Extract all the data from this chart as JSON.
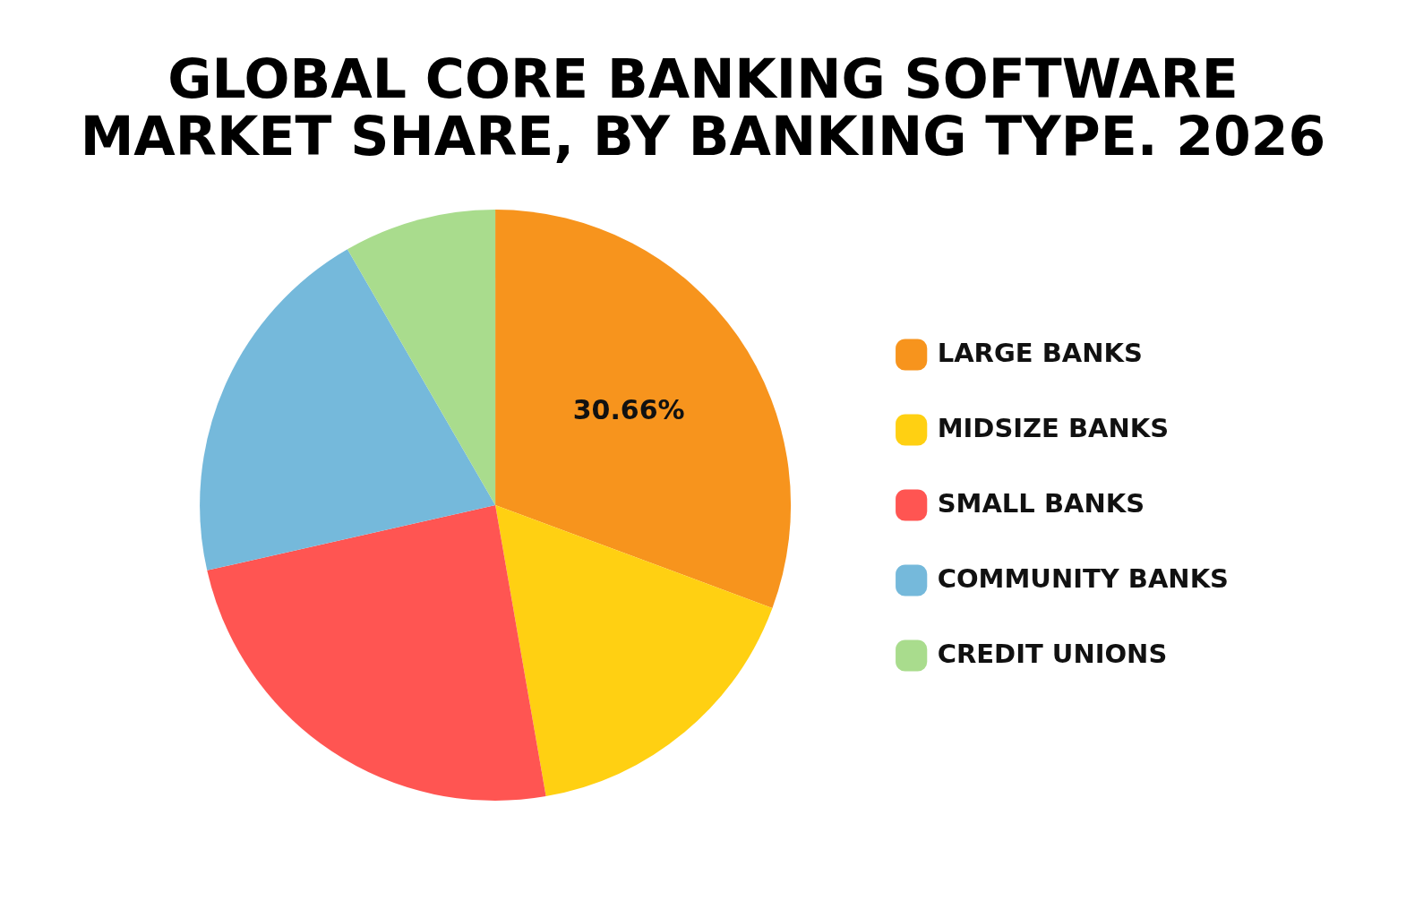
{
  "chart_data": {
    "type": "pie",
    "title": "GLOBAL CORE BANKING SOFTWARE MARKET SHARE, BY BANKING TYPE. 2026",
    "categories": [
      "LARGE BANKS",
      "MIDSIZE BANKS",
      "SMALL BANKS",
      "COMMUNITY BANKS",
      "CREDIT UNIONS"
    ],
    "values": [
      30.66,
      16.6,
      24.2,
      20.2,
      8.34
    ],
    "colors": [
      "#f7941d",
      "#ffd012",
      "#ff5552",
      "#75b9db",
      "#a9dc8d"
    ],
    "value_labels": [
      "30.66%",
      null,
      null,
      null,
      null
    ],
    "legend": "right"
  }
}
